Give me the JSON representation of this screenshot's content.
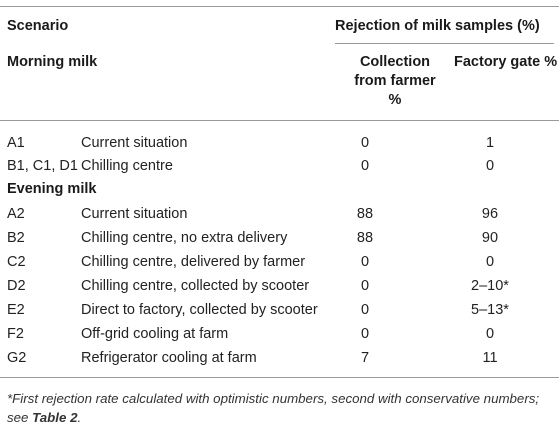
{
  "header": {
    "scenario": "Scenario",
    "rejection": "Rejection of milk samples (%)",
    "morning_milk": "Morning milk",
    "col_collection": [
      "Collection",
      "from farmer",
      "%"
    ],
    "col_factory": "Factory gate %"
  },
  "sections": {
    "morning_rows": [
      {
        "code": "A1",
        "desc": "Current situation",
        "collection": "0",
        "factory": "1"
      },
      {
        "code": "B1, C1, D1",
        "desc": "Chilling centre",
        "collection": "0",
        "factory": "0"
      }
    ],
    "evening_label": "Evening milk",
    "evening_rows": [
      {
        "code": "A2",
        "desc": "Current situation",
        "collection": "88",
        "factory": "96"
      },
      {
        "code": "B2",
        "desc": "Chilling centre, no extra delivery",
        "collection": "88",
        "factory": "90"
      },
      {
        "code": "C2",
        "desc": "Chilling centre, delivered by farmer",
        "collection": "0",
        "factory": "0"
      },
      {
        "code": "D2",
        "desc": "Chilling centre, collected by scooter",
        "collection": "0",
        "factory": "2–10*"
      },
      {
        "code": "E2",
        "desc": "Direct to factory, collected by scooter",
        "collection": "0",
        "factory": "5–13*"
      },
      {
        "code": "F2",
        "desc": "Off-grid cooling at farm",
        "collection": "0",
        "factory": "0"
      },
      {
        "code": "G2",
        "desc": "Refrigerator cooling at farm",
        "collection": "7",
        "factory": "11"
      }
    ]
  },
  "footnote": {
    "text_a": "*First rejection rate calculated with optimistic numbers, second with conservative numbers; see ",
    "link": "Table 2",
    "text_b": "."
  }
}
